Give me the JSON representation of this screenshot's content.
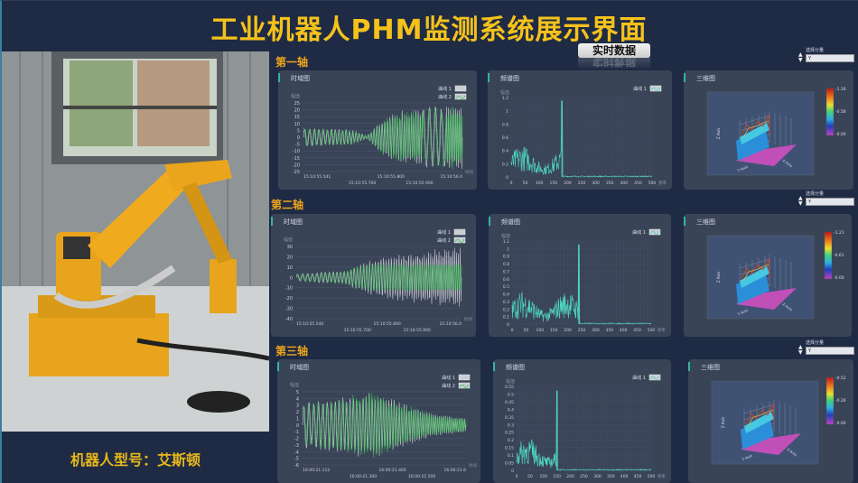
{
  "title": "工业机器人PHM监测系统展示界面",
  "realtime_button": "实时数据",
  "robot_model": "机器人型号：艾斯顿",
  "colors": {
    "title": "#f5c21b",
    "axis_label": "#f0a51a",
    "curve1": "#d6d6dc",
    "curve2": "#3ec45a",
    "spectrum": "#4fd6c4",
    "background": "#1f2b44",
    "panel": "#3a4457"
  },
  "axes": [
    {
      "label": "第一轴",
      "selector": {
        "label": "选择分量",
        "value": "Y"
      },
      "time": {
        "title": "时域图",
        "ylabel": "幅值",
        "xlabel": "时间",
        "legend": [
          "曲线 1",
          "曲线 2"
        ],
        "ylim": [
          -25,
          25
        ],
        "yticks": [
          "25",
          "20",
          "15",
          "10",
          "5",
          "0",
          "-5",
          "-10",
          "-15",
          "-20",
          "-25"
        ],
        "xticks": [
          "15:10:55.541",
          "15:10:55.700",
          "15:10:55.800",
          "15:10:55.900",
          "15:10:56.0"
        ]
      },
      "spectrum": {
        "title": "频谱图",
        "ylabel": "幅值",
        "xlabel": "频率",
        "legend": [
          "曲线 1"
        ],
        "ylim": [
          0,
          1.2
        ],
        "xlim": [
          0,
          500
        ],
        "yticks": [
          "1.2",
          "1",
          "0.8",
          "0.6",
          "0.4",
          "0.2",
          "0"
        ],
        "xticks": [
          "0",
          "50",
          "100",
          "150",
          "200",
          "250",
          "300",
          "350",
          "400",
          "450",
          "500"
        ],
        "peak": {
          "x": 180,
          "y": 1.15
        }
      },
      "surface": {
        "title": "三维图",
        "colorbar": [
          "1.16",
          "0.58",
          "0.00"
        ],
        "axis_labels": [
          "Z Axis",
          "Y Axis",
          "X Axis"
        ]
      }
    },
    {
      "label": "第二轴",
      "selector": {
        "label": "选择分量",
        "value": "Y"
      },
      "time": {
        "title": "时域图",
        "ylabel": "幅值",
        "xlabel": "时间",
        "legend": [
          "曲线 1",
          "曲线 2"
        ],
        "ylim": [
          -40,
          30
        ],
        "yticks": [
          "30",
          "20",
          "10",
          "0",
          "-10",
          "-20",
          "-30",
          "-40"
        ],
        "xticks": [
          "15:10:55.540",
          "15:10:55.700",
          "15:10:55.800",
          "15:10:55.900",
          "15:10:56.0"
        ]
      },
      "spectrum": {
        "title": "频谱图",
        "ylabel": "幅值",
        "xlabel": "频率",
        "legend": [
          "曲线 1"
        ],
        "ylim": [
          0,
          1.1
        ],
        "xlim": [
          0,
          500
        ],
        "yticks": [
          "1.1",
          "1",
          "0.9",
          "0.8",
          "0.7",
          "0.6",
          "0.5",
          "0.4",
          "0.3",
          "0.2",
          "0.1",
          "0"
        ],
        "xticks": [
          "0",
          "50",
          "100",
          "150",
          "200",
          "250",
          "300",
          "350",
          "400",
          "450",
          "500"
        ],
        "peak": {
          "x": 240,
          "y": 1.05
        }
      },
      "surface": {
        "title": "三维图",
        "colorbar": [
          "1.21",
          "0.61",
          "0.00"
        ],
        "axis_labels": [
          "Z Axis",
          "Y Axis",
          "X Axis"
        ]
      }
    },
    {
      "label": "第三轴",
      "selector": {
        "label": "选择分量",
        "value": "Y"
      },
      "time": {
        "title": "时域图",
        "ylabel": "幅值",
        "xlabel": "时间",
        "legend": [
          "曲线 1",
          "曲线 2"
        ],
        "ylim": [
          -6,
          5
        ],
        "yticks": [
          "5",
          "4",
          "3",
          "2",
          "1",
          "0",
          "-1",
          "-2",
          "-3",
          "-4",
          "-5",
          "-6"
        ],
        "xticks": [
          "16:00:21.112",
          "16:00:21.300",
          "16:00:21.400",
          "16:00:21.500",
          "16:00:21.6"
        ]
      },
      "spectrum": {
        "title": "频谱图",
        "ylabel": "幅值",
        "xlabel": "频率",
        "legend": [
          "曲线 1"
        ],
        "ylim": [
          0,
          0.55
        ],
        "xlim": [
          0,
          500
        ],
        "yticks": [
          "0.55",
          "0.5",
          "0.45",
          "0.4",
          "0.35",
          "0.3",
          "0.25",
          "0.2",
          "0.15",
          "0.1",
          "0.05",
          "0"
        ],
        "xticks": [
          "0",
          "50",
          "100",
          "150",
          "200",
          "250",
          "300",
          "350",
          "400",
          "450",
          "500"
        ],
        "peak": {
          "x": 150,
          "y": 0.52
        }
      },
      "surface": {
        "title": "三维图",
        "colorbar": [
          "0.52",
          "0.26",
          "0.00"
        ],
        "axis_labels": [
          "Z Axis",
          "Y Axis",
          "X Axis"
        ]
      }
    }
  ]
}
